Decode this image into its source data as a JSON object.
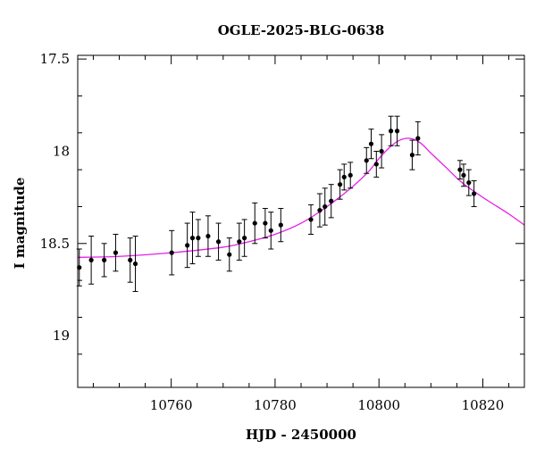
{
  "chart_data": {
    "type": "scatter",
    "title": "OGLE-2025-BLG-0638",
    "xlabel": "HJD - 2450000",
    "ylabel": "I magnitude",
    "xlim": [
      10742,
      10828
    ],
    "ylim": [
      19.28,
      17.48
    ],
    "y_inverted": true,
    "grid": false,
    "x_ticks": [
      "10760",
      "10780",
      "10800",
      "10820"
    ],
    "y_ticks": [
      "17.5",
      "18",
      "18.5",
      "19"
    ],
    "colors": {
      "points": "#000000",
      "model": "#e61ee6",
      "frame": "#000000"
    },
    "series": [
      {
        "kind": "points_with_errorbars",
        "x": [
          10742.3,
          10744.6,
          10747.1,
          10749.3,
          10752.1,
          10753.1,
          10760.1,
          10763.1,
          10764.1,
          10765.2,
          10767.1,
          10769.1,
          10771.2,
          10773.1,
          10774.1,
          10776.1,
          10778.1,
          10779.2,
          10781.1,
          10786.9,
          10788.6,
          10789.6,
          10790.8,
          10792.5,
          10793.3,
          10794.5,
          10797.6,
          10798.5,
          10799.5,
          10800.5,
          10802.3,
          10803.5,
          10806.4,
          10807.5,
          10815.6,
          10816.3,
          10817.3,
          10818.3
        ],
        "y": [
          18.63,
          18.59,
          18.59,
          18.55,
          18.59,
          18.61,
          18.55,
          18.51,
          18.47,
          18.47,
          18.46,
          18.49,
          18.56,
          18.49,
          18.47,
          18.39,
          18.39,
          18.43,
          18.4,
          18.37,
          18.32,
          18.3,
          18.27,
          18.18,
          18.14,
          18.13,
          18.05,
          17.96,
          18.07,
          18.0,
          17.89,
          17.89,
          18.02,
          17.93,
          18.1,
          18.13,
          18.17,
          18.23
        ],
        "err": [
          0.1,
          0.13,
          0.09,
          0.1,
          0.12,
          0.15,
          0.12,
          0.12,
          0.14,
          0.1,
          0.11,
          0.1,
          0.09,
          0.1,
          0.1,
          0.11,
          0.08,
          0.1,
          0.09,
          0.08,
          0.09,
          0.1,
          0.09,
          0.08,
          0.07,
          0.07,
          0.07,
          0.08,
          0.07,
          0.09,
          0.08,
          0.08,
          0.08,
          0.09,
          0.05,
          0.06,
          0.07,
          0.07
        ]
      },
      {
        "kind": "model_curve",
        "x": [
          10742,
          10750,
          10760,
          10770,
          10775,
          10780,
          10785,
          10790,
          10795,
          10798,
          10800,
          10802,
          10804,
          10806,
          10808,
          10810,
          10813,
          10816,
          10820,
          10825,
          10828
        ],
        "y": [
          18.575,
          18.57,
          18.55,
          18.52,
          18.49,
          18.45,
          18.39,
          18.3,
          18.19,
          18.11,
          18.04,
          17.98,
          17.94,
          17.93,
          17.955,
          18.01,
          18.09,
          18.17,
          18.25,
          18.34,
          18.4
        ]
      }
    ]
  }
}
